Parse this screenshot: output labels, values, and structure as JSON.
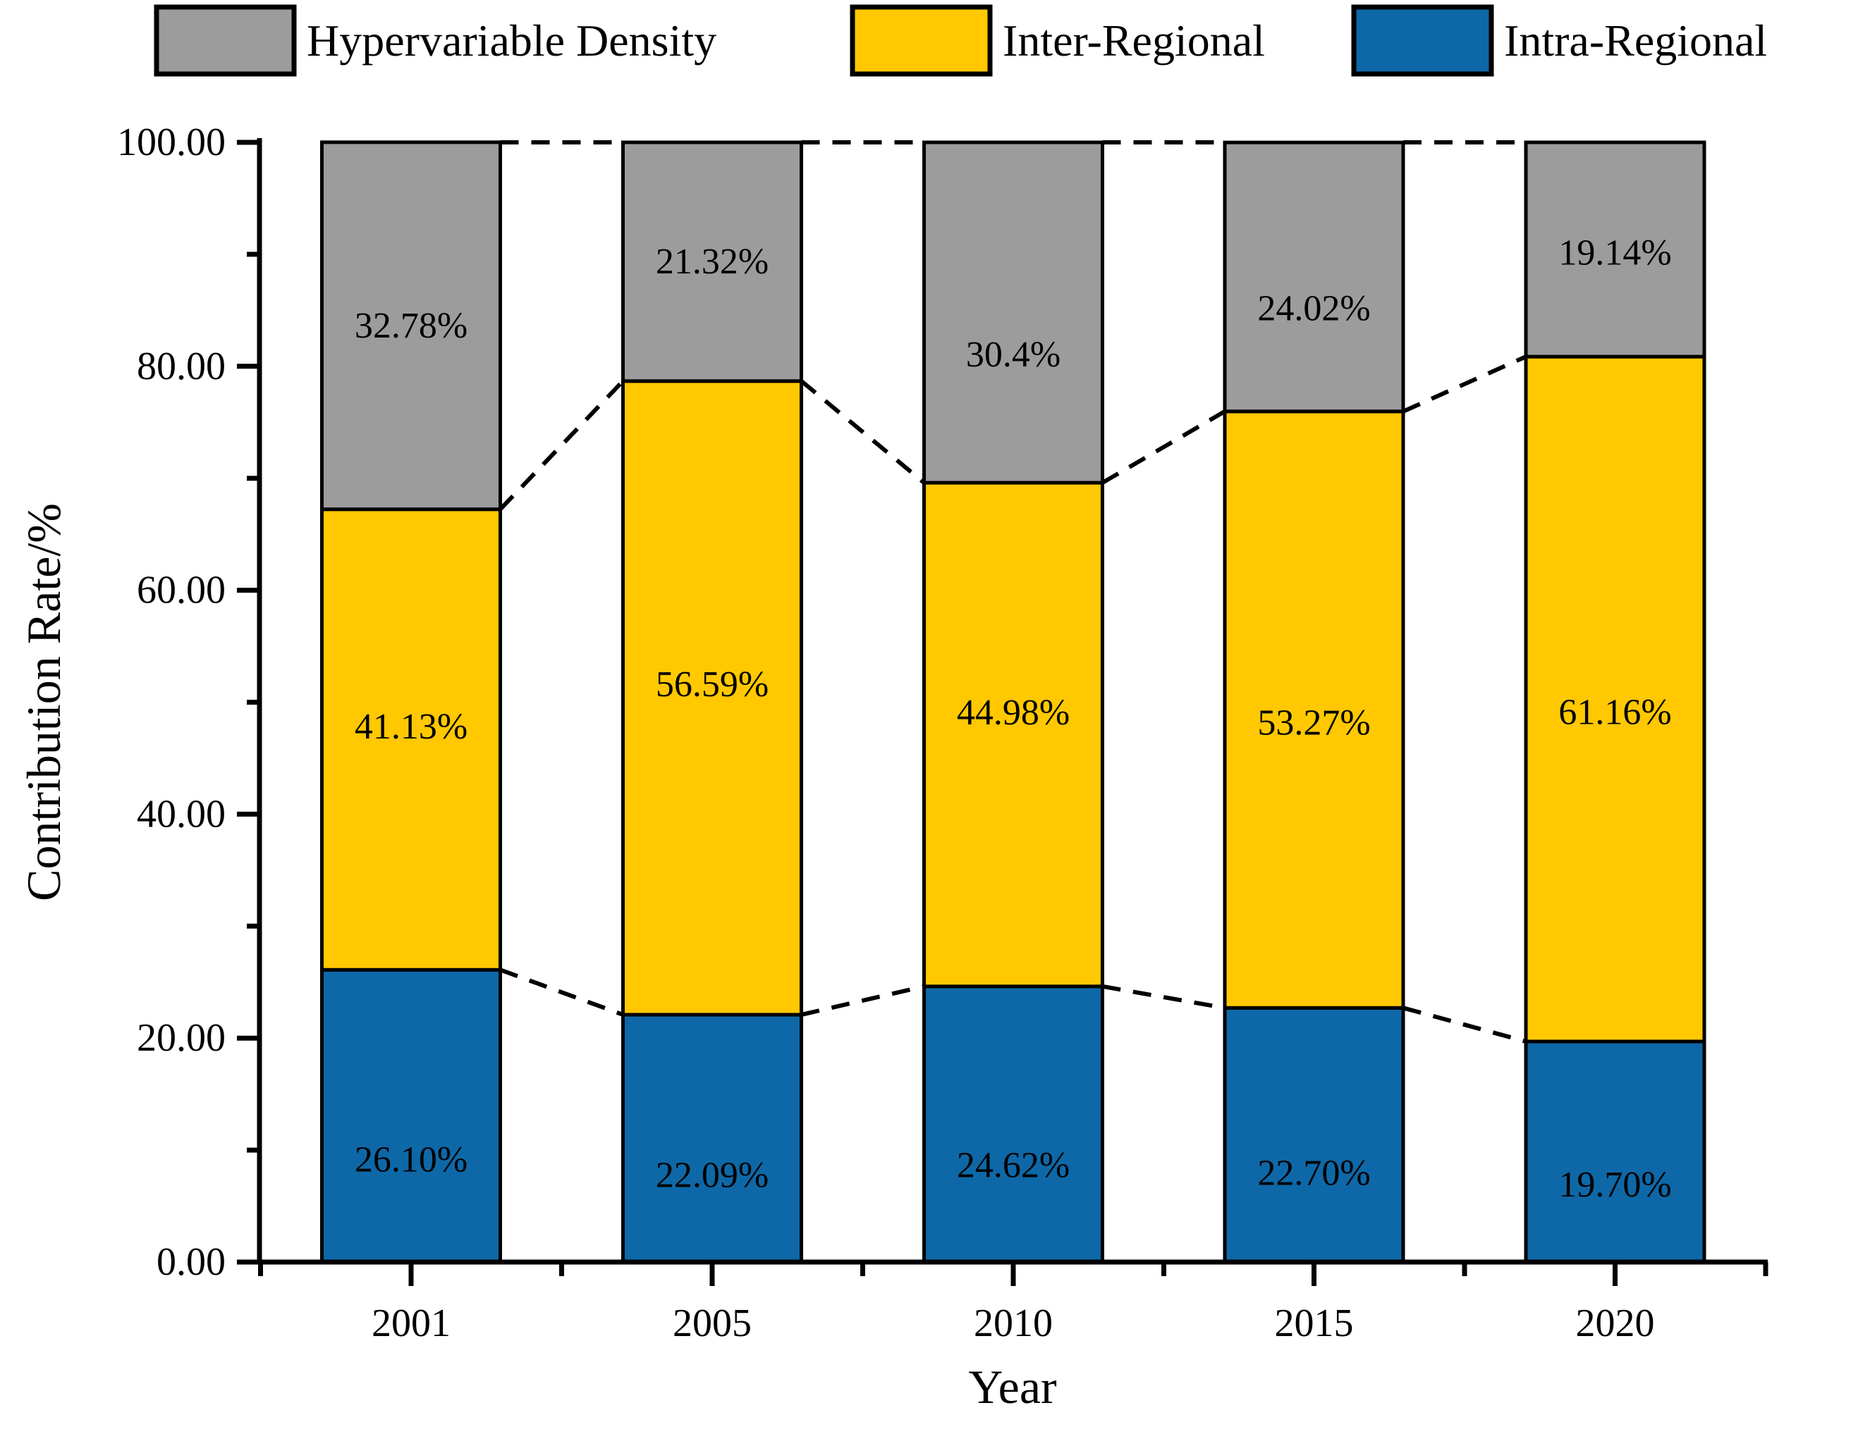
{
  "figure": {
    "legend": {
      "items": [
        {
          "label": "Hypervariable Density",
          "color": "#9C9C9C"
        },
        {
          "label": "Inter-Regional",
          "color": "#FFC800"
        },
        {
          "label": "Intra-Regional",
          "color": "#0E68A7"
        }
      ]
    },
    "y_axis": {
      "title": "Contribution Rate/%",
      "tick_labels": [
        "0.00",
        "20.00",
        "40.00",
        "60.00",
        "80.00",
        "100.00"
      ]
    },
    "x_axis": {
      "title": "Year",
      "tick_labels": [
        "2001",
        "2005",
        "2010",
        "2015",
        "2020"
      ]
    }
  },
  "chart_data": {
    "type": "bar",
    "stacked": true,
    "title": "",
    "xlabel": "Year",
    "ylabel": "Contribution Rate/%",
    "categories": [
      "2001",
      "2005",
      "2010",
      "2015",
      "2020"
    ],
    "series": [
      {
        "name": "Intra-Regional",
        "color": "#0E68A7",
        "values": [
          26.1,
          22.09,
          24.62,
          22.7,
          19.7
        ],
        "labels": [
          "26.10%",
          "22.09%",
          "24.62%",
          "22.70%",
          "19.70%"
        ]
      },
      {
        "name": "Inter-Regional",
        "color": "#FFC800",
        "values": [
          41.13,
          56.59,
          44.98,
          53.27,
          61.16
        ],
        "labels": [
          "41.13%",
          "56.59%",
          "44.98%",
          "53.27%",
          "61.16%"
        ]
      },
      {
        "name": "Hypervariable Density",
        "color": "#9C9C9C",
        "values": [
          32.78,
          21.32,
          30.4,
          24.02,
          19.14
        ],
        "labels": [
          "32.78%",
          "21.32%",
          "30.4%",
          "24.02%",
          "19.14%"
        ]
      }
    ],
    "ylim": [
      0,
      100
    ],
    "yticks": {
      "major": [
        0,
        20,
        40,
        60,
        80,
        100
      ],
      "labels": [
        "0.00",
        "20.00",
        "40.00",
        "60.00",
        "80.00",
        "100.00"
      ],
      "minor": [
        10,
        30,
        50,
        70,
        90
      ]
    },
    "grid": false,
    "legend_position": "top",
    "bar_edge_color": "#000000",
    "connector_style": "dashed lines join segment boundaries of adjacent bars at intra-top, inter-top and 100% levels"
  }
}
